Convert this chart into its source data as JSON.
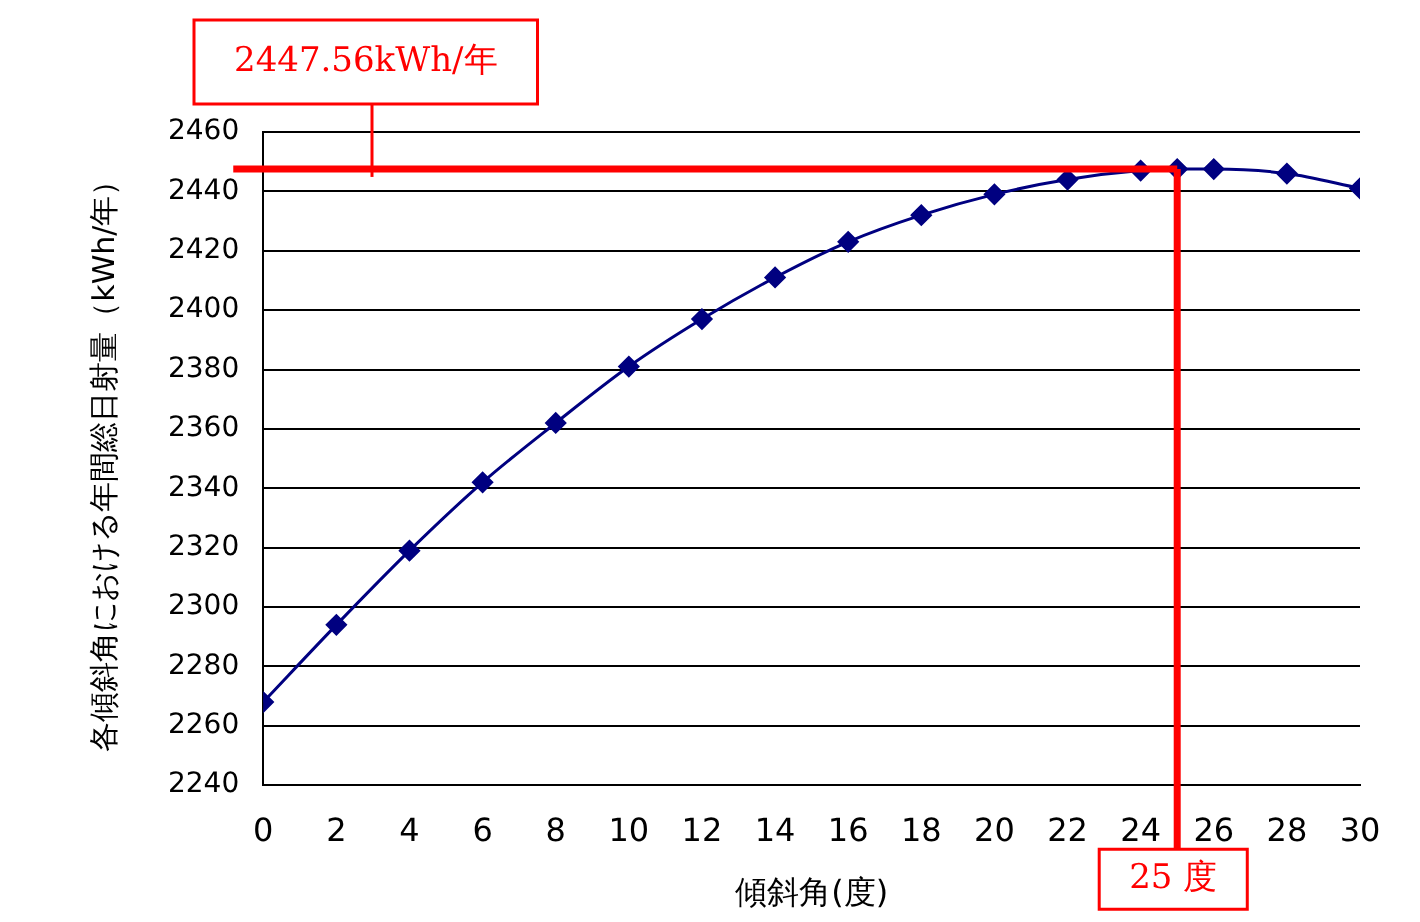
{
  "chart_data": {
    "type": "line",
    "xlabel": "傾斜角(度)",
    "ylabel": "各傾斜角における年間総日射量（kWh/年）",
    "x": [
      0,
      2,
      4,
      6,
      8,
      10,
      12,
      14,
      16,
      18,
      20,
      22,
      24,
      25,
      26,
      28,
      30
    ],
    "series": [
      {
        "color": "#000080",
        "values": [
          2268,
          2294,
          2319,
          2342,
          2362,
          2381,
          2397,
          2411,
          2423,
          2432,
          2439,
          2444,
          2447,
          2447.5,
          2447.5,
          2446,
          2441
        ]
      }
    ],
    "xlim": [
      0,
      30
    ],
    "xticks": [
      0,
      2,
      4,
      6,
      8,
      10,
      12,
      14,
      16,
      18,
      20,
      22,
      24,
      26,
      28,
      30
    ],
    "ylim": [
      2240,
      2460
    ],
    "yticks": [
      2240,
      2260,
      2280,
      2300,
      2320,
      2340,
      2360,
      2380,
      2400,
      2420,
      2440,
      2460
    ],
    "grid": "y",
    "legend": false,
    "marker": "diamond",
    "line_style": "solid",
    "ref_lines": [
      {
        "axis": "y",
        "value": 2447.56,
        "label": "2447.56kWh/年",
        "color": "#ff0000"
      },
      {
        "axis": "x",
        "value": 25,
        "label": "25 度",
        "color": "#ff0000"
      }
    ]
  }
}
